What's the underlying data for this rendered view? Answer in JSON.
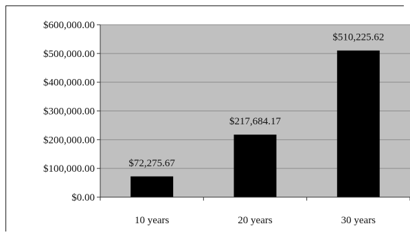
{
  "chart_data": {
    "type": "bar",
    "categories": [
      "10 years",
      "20 years",
      "30 years"
    ],
    "values": [
      72275.67,
      217684.17,
      510225.62
    ],
    "data_labels": [
      "$72,275.67",
      "$217,684.17",
      "$510,225.62"
    ],
    "title": "",
    "xlabel": "",
    "ylabel": "",
    "ylim": [
      0,
      600000
    ],
    "y_ticks": [
      0,
      100000,
      200000,
      300000,
      400000,
      500000,
      600000
    ],
    "y_tick_labels": [
      "$0.00",
      "$100,000.00",
      "$200,000.00",
      "$300,000.00",
      "$400,000.00",
      "$500,000.00",
      "$600,000.00"
    ],
    "grid": true,
    "legend": "none",
    "colors": {
      "plot_background": "#c0c0c0",
      "bar": "#000000",
      "gridline": "#8c8c8c",
      "text": "#111111"
    }
  }
}
